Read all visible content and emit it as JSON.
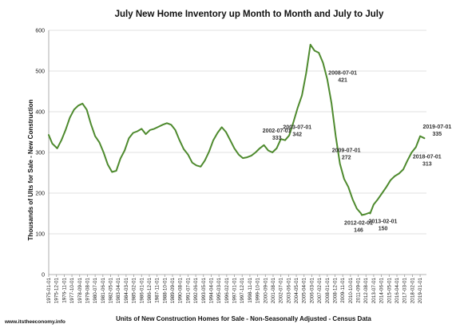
{
  "chart_data": {
    "type": "line",
    "title": "July New Home Inventory up Month to Month and July to July",
    "xlabel": "Units of New Construction Homes for Sale - Non-Seasonally Adjusted - Census Data",
    "ylabel": "Thousands of Ults for Sale - New Construction",
    "ylim": [
      0,
      600
    ],
    "yticks": [
      0,
      100,
      200,
      300,
      400,
      500,
      600
    ],
    "grid": true,
    "legend": "none",
    "line_color": "#4e8a2e",
    "xticks": [
      "1975-01-01",
      "1975-12-01",
      "1976-11-01",
      "1977-10-01",
      "1978-09-01",
      "1979-08-01",
      "1980-07-01",
      "1981-06-01",
      "1982-05-01",
      "1983-04-01",
      "1984-03-01",
      "1985-02-01",
      "1986-01-01",
      "1986-12-01",
      "1987-11-01",
      "1988-10-01",
      "1989-09-01",
      "1990-08-01",
      "1991-07-01",
      "1992-06-01",
      "1993-05-01",
      "1994-04-01",
      "1995-03-01",
      "1996-02-01",
      "1997-01-01",
      "1997-12-01",
      "1998-11-01",
      "1999-10-01",
      "2000-09-01",
      "2001-08-01",
      "2002-07-01",
      "2003-06-01",
      "2004-05-01",
      "2005-04-01",
      "2006-03-01",
      "2007-02-01",
      "2008-01-01",
      "2008-12-01",
      "2009-11-01",
      "2010-10-01",
      "2011-09-01",
      "2012-08-01",
      "2013-07-01",
      "2014-06-01",
      "2015-05-01",
      "2016-04-01",
      "2017-03-01",
      "2018-02-01",
      "2019-01-01"
    ],
    "series": [
      {
        "x": [
          "1975-01",
          "1975-06",
          "1976-01",
          "1976-07",
          "1977-01",
          "1977-07",
          "1978-01",
          "1978-07",
          "1979-01",
          "1979-07",
          "1980-01",
          "1980-07",
          "1981-01",
          "1981-07",
          "1982-01",
          "1982-07",
          "1983-01",
          "1983-07",
          "1984-01",
          "1984-07",
          "1985-01",
          "1985-07",
          "1986-01",
          "1986-07",
          "1987-01",
          "1987-07",
          "1988-01",
          "1988-07",
          "1989-01",
          "1989-07",
          "1990-01",
          "1990-07",
          "1991-01",
          "1991-07",
          "1992-01",
          "1992-07",
          "1993-01",
          "1993-07",
          "1994-01",
          "1994-07",
          "1995-01",
          "1995-07",
          "1996-01",
          "1996-07",
          "1997-01",
          "1997-07",
          "1998-01",
          "1998-07",
          "1999-01",
          "1999-07",
          "2000-01",
          "2000-07",
          "2001-01",
          "2001-07",
          "2002-01",
          "2002-07",
          "2003-01",
          "2003-07",
          "2004-01",
          "2004-07",
          "2005-01",
          "2005-07",
          "2006-01",
          "2006-07",
          "2007-01",
          "2007-07",
          "2008-01",
          "2008-07",
          "2009-01",
          "2009-07",
          "2010-01",
          "2010-07",
          "2011-01",
          "2011-07",
          "2012-01",
          "2012-02",
          "2012-07",
          "2013-01",
          "2013-02",
          "2013-07",
          "2014-01",
          "2014-07",
          "2015-01",
          "2015-07",
          "2016-01",
          "2016-07",
          "2017-01",
          "2017-07",
          "2018-01",
          "2018-07",
          "2019-01",
          "2019-07"
        ],
        "values": [
          343,
          322,
          310,
          330,
          355,
          385,
          405,
          415,
          420,
          405,
          370,
          340,
          325,
          300,
          270,
          252,
          255,
          285,
          305,
          335,
          348,
          352,
          358,
          345,
          355,
          358,
          363,
          368,
          372,
          368,
          355,
          330,
          308,
          295,
          275,
          268,
          265,
          280,
          302,
          330,
          348,
          362,
          350,
          330,
          310,
          295,
          286,
          288,
          292,
          300,
          310,
          318,
          305,
          300,
          310,
          333,
          330,
          342,
          375,
          410,
          440,
          495,
          565,
          550,
          545,
          520,
          480,
          421,
          340,
          272,
          235,
          215,
          185,
          162,
          150,
          146,
          148,
          152,
          150,
          172,
          185,
          200,
          215,
          232,
          242,
          248,
          258,
          280,
          300,
          313,
          340,
          335
        ]
      }
    ],
    "annotations": [
      {
        "date": "2002-07-01",
        "value": "333"
      },
      {
        "date": "2003-07-01",
        "value": "342"
      },
      {
        "date": "2008-07-01",
        "value": "421"
      },
      {
        "date": "2009-07-01",
        "value": "272"
      },
      {
        "date": "2012-02-01",
        "value": "146"
      },
      {
        "date": "2013-02-01",
        "value": "150"
      },
      {
        "date": "2018-07-01",
        "value": "313"
      },
      {
        "date": "2019-07-01",
        "value": "335"
      }
    ]
  },
  "source": "www.itstheeconomy.info"
}
